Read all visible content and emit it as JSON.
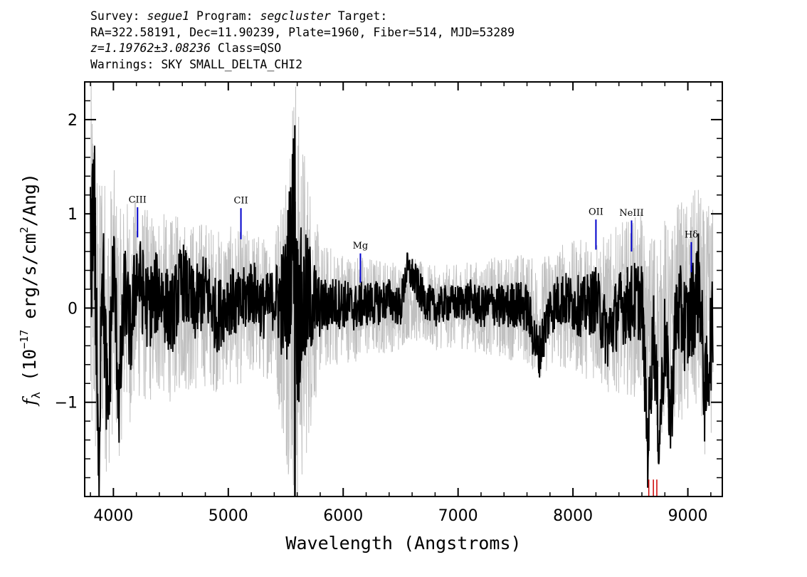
{
  "header": {
    "line1": {
      "survey_label": "Survey: ",
      "survey": "segue1",
      "program_label": " Program: ",
      "program": "segcluster",
      "target_label": " Target:"
    },
    "line2": "RA=322.58191, Dec=11.90239, Plate=1960, Fiber=514, MJD=53289",
    "line3": {
      "z": "z=1.19762±3.08236",
      "class": " Class=QSO"
    },
    "line4": "Warnings: SKY SMALL_DELTA_CHI2"
  },
  "chart_data": {
    "type": "line",
    "xlabel": "Wavelength (Angstroms)",
    "ylabel_prefix": "f",
    "ylabel_sub": "λ",
    "ylabel_rest": " (10",
    "ylabel_exp": "−17",
    "ylabel_units": " erg/s/cm",
    "ylabel_units_exp": "2",
    "ylabel_tail": "/Ang)",
    "xlim": [
      3750,
      9300
    ],
    "ylim": [
      -2.0,
      2.4
    ],
    "xticks": [
      4000,
      5000,
      6000,
      7000,
      8000,
      9000
    ],
    "xtick_labels": [
      "4000",
      "5000",
      "6000",
      "7000",
      "8000",
      "9000"
    ],
    "yticks": [
      -1,
      0,
      1,
      2
    ],
    "ytick_labels": [
      "−1",
      "0",
      "1",
      "2"
    ],
    "series": [
      {
        "role": "error",
        "color": "#c0c0c0",
        "x": [
          3800,
          3900,
          4000,
          4100,
          4200,
          4400,
          4600,
          4800,
          5000,
          5200,
          5400,
          5580,
          5800,
          6000,
          6200,
          6400,
          6600,
          6800,
          7000,
          7200,
          7400,
          7600,
          7800,
          8000,
          8200,
          8400,
          8600,
          8800,
          9000,
          9200
        ],
        "values": [
          2.3,
          1.6,
          1.4,
          1.2,
          1.1,
          1.0,
          0.95,
          0.9,
          0.85,
          0.8,
          0.75,
          2.4,
          0.7,
          0.6,
          0.55,
          0.5,
          0.45,
          0.45,
          0.45,
          0.5,
          0.55,
          0.6,
          0.65,
          0.7,
          0.8,
          0.9,
          1.0,
          1.1,
          1.2,
          1.3
        ]
      },
      {
        "role": "flux",
        "color": "#000000",
        "x": [
          3800,
          3830,
          3870,
          3900,
          3950,
          4000,
          4050,
          4100,
          4150,
          4200,
          4300,
          4400,
          4500,
          4600,
          4700,
          4800,
          4900,
          5000,
          5100,
          5200,
          5300,
          5400,
          5500,
          5580,
          5600,
          5700,
          5800,
          5900,
          6000,
          6100,
          6200,
          6300,
          6400,
          6500,
          6550,
          6600,
          6700,
          6800,
          6900,
          7000,
          7100,
          7200,
          7300,
          7400,
          7500,
          7600,
          7700,
          7800,
          7900,
          8000,
          8100,
          8200,
          8300,
          8400,
          8500,
          8600,
          8650,
          8700,
          8750,
          8800,
          8850,
          8900,
          9000,
          9100,
          9150,
          9200
        ],
        "values": [
          0.3,
          1.5,
          -2.0,
          0.7,
          -1.2,
          0.5,
          -1.0,
          0.2,
          -0.3,
          0.4,
          0.0,
          0.2,
          -0.1,
          0.3,
          0.0,
          0.2,
          -0.1,
          0.1,
          0.0,
          0.2,
          0.0,
          0.1,
          0.05,
          1.13,
          -0.1,
          0.1,
          0.0,
          0.05,
          0.05,
          0.0,
          0.05,
          0.05,
          0.1,
          0.0,
          0.4,
          0.35,
          0.1,
          0.0,
          0.05,
          0.05,
          0.1,
          0.0,
          0.05,
          0.0,
          0.05,
          0.0,
          -0.5,
          0.0,
          0.1,
          0.05,
          0.0,
          0.1,
          -0.3,
          0.0,
          0.05,
          0.1,
          -1.5,
          -0.2,
          -1.4,
          -0.3,
          -1.2,
          0.0,
          -0.2,
          0.3,
          -1.0,
          -0.3
        ]
      }
    ],
    "emission_lines": [
      {
        "label": "CIII",
        "x": 4210,
        "y_bottom": 0.75,
        "y_top": 1.07,
        "label_y": 1.12
      },
      {
        "label": "CII",
        "x": 5110,
        "y_bottom": 0.73,
        "y_top": 1.06,
        "label_y": 1.11
      },
      {
        "label": "Mg",
        "x": 6150,
        "y_bottom": 0.27,
        "y_top": 0.58,
        "label_y": 0.63
      },
      {
        "label": "OII",
        "x": 8200,
        "y_bottom": 0.62,
        "y_top": 0.94,
        "label_y": 0.99
      },
      {
        "label": "NeIII",
        "x": 8510,
        "y_bottom": 0.6,
        "y_top": 0.93,
        "label_y": 0.98
      },
      {
        "label": "Hδ",
        "x": 9030,
        "y_bottom": 0.38,
        "y_top": 0.7,
        "label_y": 0.75
      }
    ],
    "line_marker_color": "#0000cc",
    "sky_markers": {
      "color": "#cc0000",
      "x": [
        8660,
        8700,
        8730
      ],
      "y_bottom": -2.0,
      "y_top": -1.82
    }
  }
}
